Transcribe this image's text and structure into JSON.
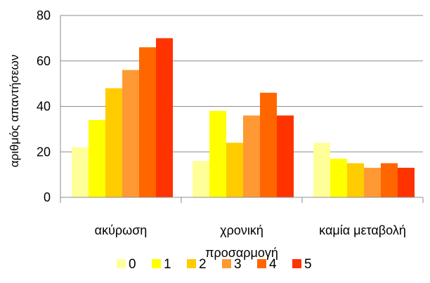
{
  "chart_data": {
    "type": "bar",
    "title": "",
    "xlabel": "",
    "ylabel": "αριθμός απαντήσεων",
    "ylim": [
      0,
      80
    ],
    "yticks": [
      0,
      20,
      40,
      60,
      80
    ],
    "grid": true,
    "legend_position": "bottom",
    "categories": [
      [
        "ακύρωση"
      ],
      [
        "χρονική",
        "προσαρμογή"
      ],
      [
        "καμία μεταβολή"
      ]
    ],
    "series": [
      {
        "name": "0",
        "color": "#FFFF99",
        "values": [
          22,
          16,
          24
        ]
      },
      {
        "name": "1",
        "color": "#FFFF00",
        "values": [
          34,
          38,
          17
        ]
      },
      {
        "name": "2",
        "color": "#FFCC00",
        "values": [
          48,
          24,
          15
        ]
      },
      {
        "name": "3",
        "color": "#FF9933",
        "values": [
          56,
          36,
          13
        ]
      },
      {
        "name": "4",
        "color": "#FF6600",
        "values": [
          66,
          46,
          15
        ]
      },
      {
        "name": "5",
        "color": "#FF3300",
        "values": [
          70,
          36,
          13
        ]
      }
    ]
  }
}
